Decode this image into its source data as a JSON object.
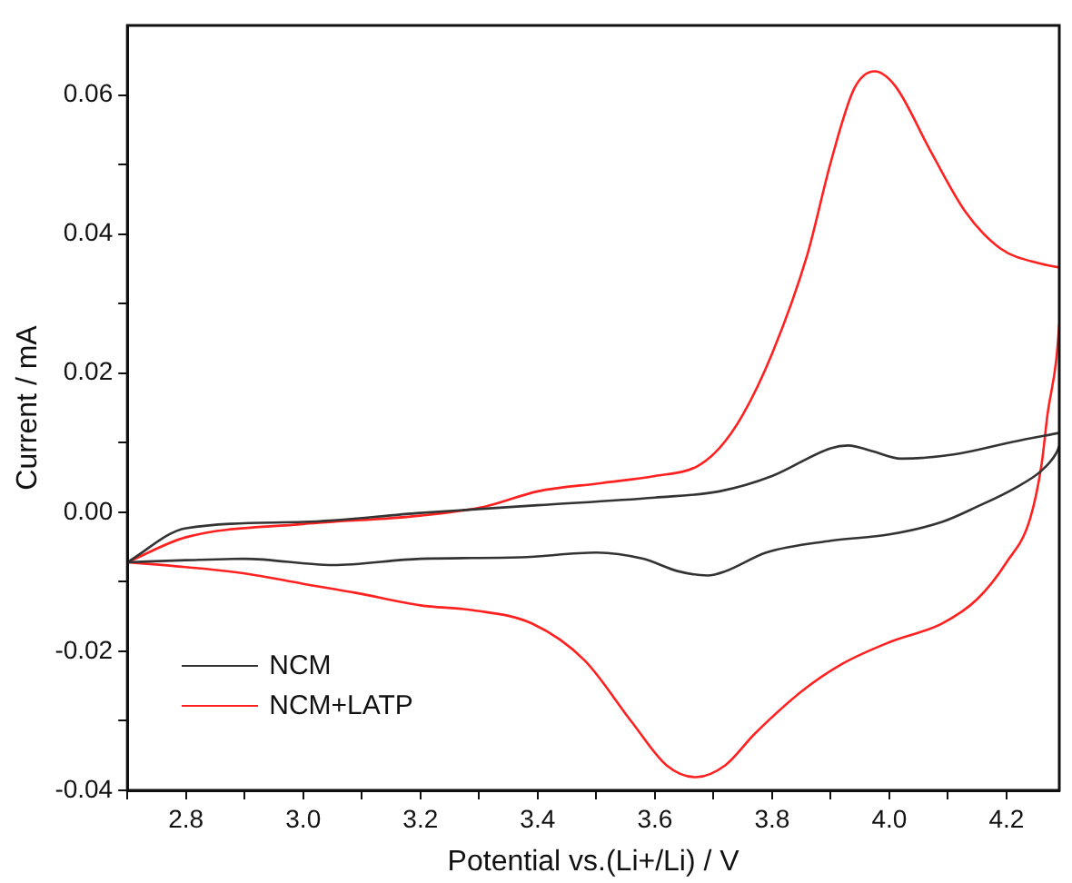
{
  "chart_data": {
    "type": "line",
    "xlabel": "Potential vs.(Li+/Li) / V",
    "ylabel": "Current / mA",
    "xlim": [
      2.7,
      4.29
    ],
    "ylim": [
      -0.04,
      0.07
    ],
    "xticks": [
      {
        "value": 2.7,
        "label": null
      },
      2.8,
      {
        "value": 2.9,
        "label": null
      },
      {
        "value": 3.0,
        "label": "3.0"
      },
      {
        "value": 3.1,
        "label": null
      },
      3.2,
      {
        "value": 3.3,
        "label": null
      },
      3.4,
      {
        "value": 3.5,
        "label": null
      },
      3.6,
      {
        "value": 3.7,
        "label": null
      },
      3.8,
      {
        "value": 3.9,
        "label": null
      },
      {
        "value": 4.0,
        "label": "4.0"
      },
      {
        "value": 4.1,
        "label": null
      },
      4.2
    ],
    "yticks": [
      -0.04,
      {
        "value": -0.03,
        "label": null
      },
      -0.02,
      {
        "value": -0.01,
        "label": null
      },
      {
        "value": 0,
        "label": "0.00"
      },
      {
        "value": 0.01,
        "label": null
      },
      0.02,
      {
        "value": 0.03,
        "label": null
      },
      0.04,
      {
        "value": 0.05,
        "label": null
      },
      0.06
    ],
    "grid": false,
    "legend": "bottom left",
    "marker": "none",
    "line_style": "solid",
    "series": [
      {
        "name": "NCM",
        "color": "#333333",
        "x": [
          2.7,
          2.8,
          3.0,
          3.2,
          3.4,
          3.6,
          3.71,
          3.8,
          3.9,
          3.93,
          3.97,
          4.02,
          4.11,
          4.21,
          4.29
        ],
        "values": [
          -0.0072,
          -0.0023,
          -0.0014,
          -0.0001,
          0.001,
          0.0021,
          0.003,
          0.0052,
          0.0092,
          0.0096,
          0.0088,
          0.0077,
          0.0083,
          0.0101,
          0.0114
        ]
      },
      {
        "color": "#333333",
        "x": [
          2.7,
          2.8,
          2.9,
          3.05,
          3.2,
          3.37,
          3.5,
          3.58,
          3.64,
          3.69,
          3.72,
          3.79,
          3.9,
          4.0,
          4.09,
          4.15,
          4.215,
          4.26,
          4.285,
          4.29
        ],
        "values": [
          -0.0072,
          -0.0069,
          -0.0067,
          -0.0076,
          -0.0067,
          -0.0065,
          -0.0058,
          -0.0067,
          -0.0085,
          -0.0091,
          -0.0085,
          -0.0058,
          -0.0041,
          -0.0032,
          -0.0014,
          0.0008,
          0.0035,
          0.006,
          0.0085,
          0.0095
        ]
      },
      {
        "name": "NCM+LATP",
        "color": "#ff2020",
        "x": [
          2.7,
          2.8,
          3.0,
          3.2,
          3.31,
          3.4,
          3.51,
          3.6,
          3.67,
          3.71,
          3.75,
          3.8,
          3.86,
          3.9,
          3.94,
          3.975,
          4.01,
          4.07,
          4.13,
          4.19,
          4.26,
          4.29
        ],
        "values": [
          -0.0072,
          -0.0036,
          -0.0017,
          -0.0005,
          0.0008,
          0.003,
          0.0042,
          0.0052,
          0.0065,
          0.0092,
          0.014,
          0.0228,
          0.037,
          0.0503,
          0.0609,
          0.0634,
          0.0613,
          0.052,
          0.0432,
          0.0379,
          0.0357,
          0.0352
        ]
      },
      {
        "color": "#ff2020",
        "x": [
          2.7,
          2.8,
          2.9,
          3.0,
          3.09,
          3.2,
          3.29,
          3.39,
          3.48,
          3.56,
          3.62,
          3.67,
          3.72,
          3.77,
          3.85,
          3.92,
          4.0,
          4.09,
          4.15,
          4.2,
          4.24,
          4.26,
          4.27,
          4.285,
          4.29
        ],
        "values": [
          -0.0072,
          -0.0079,
          -0.0088,
          -0.0103,
          -0.0116,
          -0.0134,
          -0.0141,
          -0.016,
          -0.0213,
          -0.0301,
          -0.0364,
          -0.0381,
          -0.0364,
          -0.0319,
          -0.0258,
          -0.0218,
          -0.0187,
          -0.016,
          -0.0125,
          -0.0072,
          -0.001,
          0.007,
          0.0141,
          0.022,
          0.027
        ]
      }
    ]
  }
}
